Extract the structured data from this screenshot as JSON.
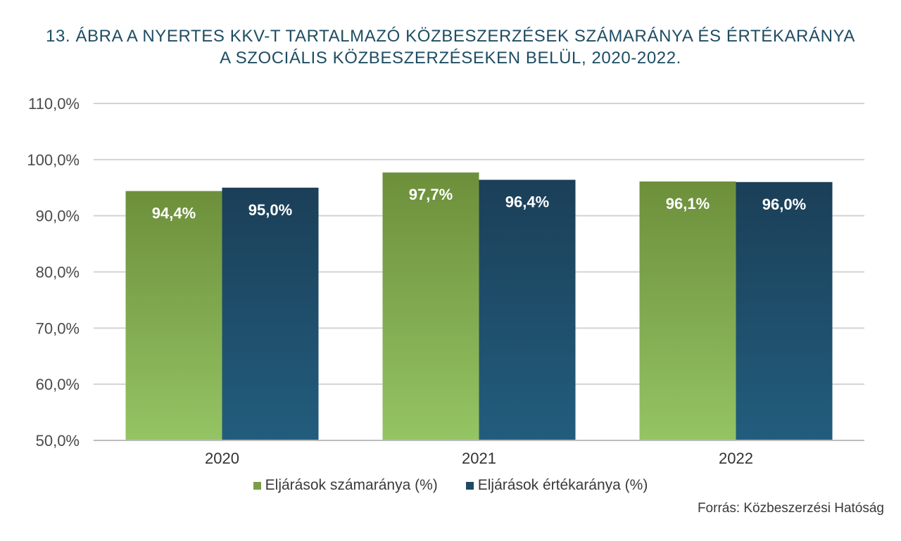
{
  "chart_data": {
    "type": "bar",
    "title_lines": [
      "13. ÁBRA A NYERTES KKV-T TARTALMAZÓ KÖZBESZERZÉSEK SZÁMARÁNYA ÉS ÉRTÉKARÁNYA",
      "A SZOCIÁLIS KÖZBESZERZÉSEKEN BELÜL, 2020-2022."
    ],
    "categories": [
      "2020",
      "2021",
      "2022"
    ],
    "series": [
      {
        "name": "Eljárások számaránya (%)",
        "values": [
          94.4,
          97.7,
          96.1
        ],
        "labels": [
          "94,4%",
          "97,7%",
          "96,1%"
        ],
        "color": "#7a9e47"
      },
      {
        "name": "Eljárások értékaránya (%)",
        "values": [
          95.0,
          96.4,
          96.0
        ],
        "labels": [
          "95,0%",
          "96,4%",
          "96,0%"
        ],
        "color": "#1d4b64"
      }
    ],
    "ylim": [
      50,
      110
    ],
    "yticks": [
      {
        "value": 50,
        "label": "50,0%"
      },
      {
        "value": 60,
        "label": "60,0%"
      },
      {
        "value": 70,
        "label": "70,0%"
      },
      {
        "value": 80,
        "label": "80,0%"
      },
      {
        "value": 90,
        "label": "90,0%"
      },
      {
        "value": 100,
        "label": "100,0%"
      },
      {
        "value": 110,
        "label": "110,0%"
      }
    ],
    "grid": true,
    "legend_position": "bottom",
    "source": "Forrás: Közbeszerzési Hatóság"
  }
}
